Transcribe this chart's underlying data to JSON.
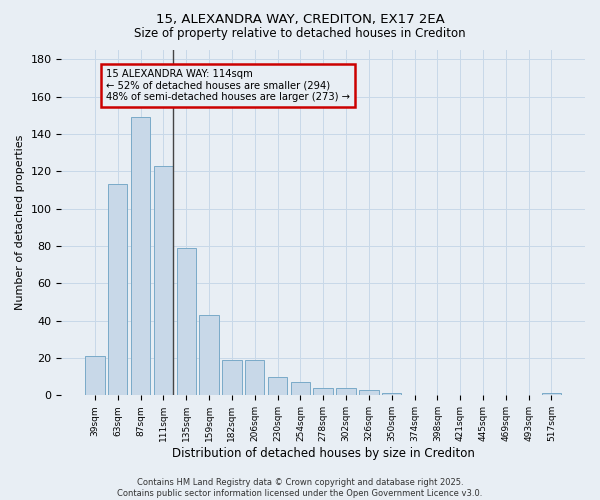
{
  "title1": "15, ALEXANDRA WAY, CREDITON, EX17 2EA",
  "title2": "Size of property relative to detached houses in Crediton",
  "xlabel": "Distribution of detached houses by size in Crediton",
  "ylabel": "Number of detached properties",
  "bar_labels": [
    "39sqm",
    "63sqm",
    "87sqm",
    "111sqm",
    "135sqm",
    "159sqm",
    "182sqm",
    "206sqm",
    "230sqm",
    "254sqm",
    "278sqm",
    "302sqm",
    "326sqm",
    "350sqm",
    "374sqm",
    "398sqm",
    "421sqm",
    "445sqm",
    "469sqm",
    "493sqm",
    "517sqm"
  ],
  "bar_values": [
    21,
    113,
    149,
    123,
    79,
    43,
    19,
    19,
    10,
    7,
    4,
    4,
    3,
    1,
    0,
    0,
    0,
    0,
    0,
    0,
    1
  ],
  "bar_color": "#c8d8e8",
  "bar_edge_color": "#7aaac8",
  "annotation_box_text_line1": "15 ALEXANDRA WAY: 114sqm",
  "annotation_box_text_line2": "← 52% of detached houses are smaller (294)",
  "annotation_box_text_line3": "48% of semi-detached houses are larger (273) →",
  "annotation_box_color": "#cc0000",
  "vline_color": "#444444",
  "grid_color": "#c8d8e8",
  "ylim": [
    0,
    185
  ],
  "yticks": [
    0,
    20,
    40,
    60,
    80,
    100,
    120,
    140,
    160,
    180
  ],
  "footer": "Contains HM Land Registry data © Crown copyright and database right 2025.\nContains public sector information licensed under the Open Government Licence v3.0.",
  "bg_color": "#e8eef4"
}
